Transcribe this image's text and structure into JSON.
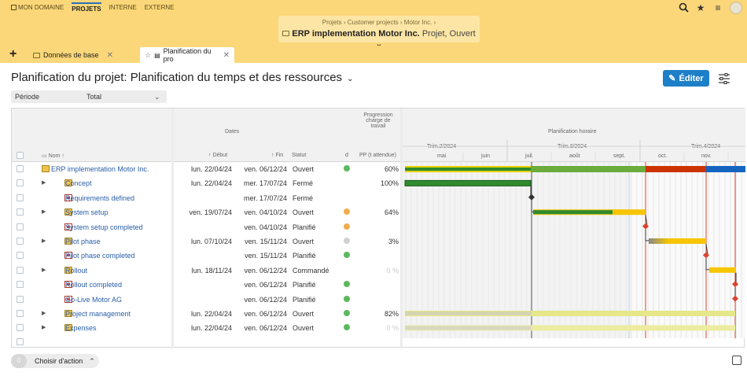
{
  "topnav": {
    "items": [
      "MON DOMAINE",
      "PROJETS",
      "INTERNE",
      "EXTERNE"
    ]
  },
  "breadcrumb": [
    "Projets",
    "Customer projects",
    "Motor Inc."
  ],
  "project": {
    "name": "ERP implementation Motor Inc.",
    "meta": "Projet, Ouvert"
  },
  "tabs": [
    {
      "label": "Données de base"
    },
    {
      "label": "Planification du pro"
    }
  ],
  "page_title": "Planification du projet: Planification du temps et des ressources",
  "edit_label": "Éditer",
  "period": {
    "label": "Période",
    "value": "Total"
  },
  "headers": {
    "dates": "Dates",
    "progress_group": [
      "Progression",
      "charge de",
      "travail"
    ],
    "planning": "Planification horaire",
    "name": "Nom",
    "start": "Début",
    "end": "Fin",
    "status": "Statut",
    "d": "d",
    "pp": "PP (t attendue)",
    "quarters": [
      "Trim.2/2024",
      "Trim.3/2024",
      "Trim.4/2024"
    ],
    "months": [
      "mai",
      "juin",
      "juil.",
      "août",
      "sept.",
      "oct.",
      "nov."
    ]
  },
  "rows": [
    {
      "name": "ERP implementation Motor Inc.",
      "start": "lun. 22/04/24",
      "end": "ven. 06/12/24",
      "status": "Ouvert",
      "pp": "60%",
      "icon": "folder-icon",
      "level": 0,
      "expandable": false,
      "d": "green"
    },
    {
      "name": "Concept",
      "start": "lun. 22/04/24",
      "end": "mer. 17/07/24",
      "status": "Fermé",
      "pp": "100%",
      "icon": "folder-icon",
      "level": 1,
      "expandable": true,
      "d": ""
    },
    {
      "name": "Requirements defined",
      "start": "",
      "end": "mer. 17/07/24",
      "status": "Fermé",
      "pp": "",
      "icon": "milestone-icon",
      "level": 1,
      "expandable": false,
      "d": ""
    },
    {
      "name": "System setup",
      "start": "ven. 19/07/24",
      "end": "ven. 04/10/24",
      "status": "Ouvert",
      "pp": "64%",
      "icon": "folder-icon",
      "level": 1,
      "expandable": true,
      "d": "orange"
    },
    {
      "name": "System setup completed",
      "start": "",
      "end": "ven. 04/10/24",
      "status": "Planifié",
      "pp": "",
      "icon": "milestone-icon",
      "level": 1,
      "expandable": false,
      "d": "orange"
    },
    {
      "name": "Pilot phase",
      "start": "lun. 07/10/24",
      "end": "ven. 15/11/24",
      "status": "Ouvert",
      "pp": "3%",
      "icon": "folder-icon",
      "level": 1,
      "expandable": true,
      "d": "grey"
    },
    {
      "name": "Pilot phase completed",
      "start": "",
      "end": "ven. 15/11/24",
      "status": "Planifié",
      "pp": "",
      "icon": "milestone-icon",
      "level": 1,
      "expandable": false,
      "d": "green"
    },
    {
      "name": "Rollout",
      "start": "lun. 18/11/24",
      "end": "ven. 06/12/24",
      "status": "Commandé",
      "pp": "0 %",
      "icon": "folder-icon",
      "level": 1,
      "expandable": true,
      "d": ""
    },
    {
      "name": "Rollout completed",
      "start": "",
      "end": "ven. 06/12/24",
      "status": "Planifié",
      "pp": "",
      "icon": "milestone-icon",
      "level": 1,
      "expandable": false,
      "d": "green"
    },
    {
      "name": "Go-Live Motor AG",
      "start": "",
      "end": "ven. 06/12/24",
      "status": "Planifié",
      "pp": "",
      "icon": "milestone-icon",
      "level": 1,
      "expandable": false,
      "d": "green"
    },
    {
      "name": "Project management",
      "start": "lun. 22/04/24",
      "end": "ven. 06/12/24",
      "status": "Ouvert",
      "pp": "82%",
      "icon": "folder-icon",
      "level": 1,
      "expandable": true,
      "d": "green"
    },
    {
      "name": "Expenses",
      "start": "lun. 22/04/24",
      "end": "ven. 06/12/24",
      "status": "Ouvert",
      "pp": "0 %",
      "icon": "folder-icon",
      "level": 1,
      "expandable": true,
      "d": "green"
    }
  ],
  "status_colors": {
    "green": "#5cb85c",
    "orange": "#f0ad4e",
    "grey": "#d0d0d0"
  },
  "footer": {
    "count": "0",
    "action_label": "Choisir d'action"
  }
}
